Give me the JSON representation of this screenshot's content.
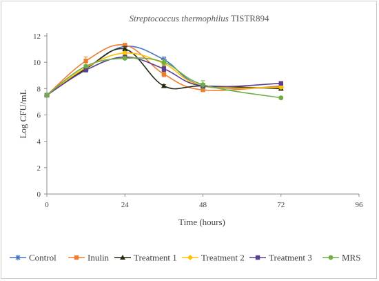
{
  "chart_data": {
    "type": "line",
    "title_italic": "Streptococcus thermophilus",
    "title_rest": " TISTR894",
    "xlabel": "Time (hours)",
    "ylabel": "Log CFU/mL",
    "x_ticks": [
      "0",
      "24",
      "48",
      "72",
      "96"
    ],
    "y_ticks": [
      "0",
      "2",
      "4",
      "6",
      "8",
      "10",
      "12"
    ],
    "xlim": [
      0,
      96
    ],
    "ylim": [
      0,
      12
    ],
    "grid": false,
    "legend_position": "bottom",
    "x": [
      0,
      12,
      24,
      36,
      48,
      72
    ],
    "series": [
      {
        "name": "Control",
        "color": "#4472C4",
        "marker": "star",
        "values": [
          7.5,
          9.5,
          11.2,
          10.2,
          8.2,
          8.1
        ],
        "errors": [
          0.1,
          0.2,
          0.1,
          0.2,
          0.2,
          0.1
        ]
      },
      {
        "name": "Inulin",
        "color": "#ED7D31",
        "marker": "square",
        "values": [
          7.5,
          10.1,
          11.3,
          9.1,
          7.9,
          8.2
        ],
        "errors": [
          0.1,
          0.3,
          0.1,
          0.2,
          0.1,
          0.1
        ]
      },
      {
        "name": "Treatment 1",
        "color": "#1F2A0F",
        "marker": "triangle",
        "values": [
          7.5,
          9.5,
          11.0,
          8.2,
          8.2,
          8.0
        ],
        "errors": [
          0.1,
          0.1,
          0.2,
          0.1,
          0.2,
          0.1
        ]
      },
      {
        "name": "Treatment 2",
        "color": "#FFC000",
        "marker": "diamond",
        "values": [
          7.5,
          9.6,
          10.7,
          9.9,
          8.2,
          8.1
        ],
        "errors": [
          0.1,
          0.1,
          0.1,
          0.2,
          0.2,
          0.1
        ]
      },
      {
        "name": "Treatment 3",
        "color": "#5B3F8C",
        "marker": "square",
        "values": [
          7.5,
          9.4,
          10.4,
          9.5,
          8.2,
          8.4
        ],
        "errors": [
          0.1,
          0.1,
          0.1,
          0.2,
          0.2,
          0.1
        ]
      },
      {
        "name": "MRS",
        "color": "#70AD47",
        "marker": "circle",
        "values": [
          7.5,
          9.7,
          10.3,
          10.0,
          8.3,
          7.3
        ],
        "errors": [
          0.1,
          0.1,
          0.1,
          0.2,
          0.3,
          0.1
        ]
      }
    ]
  }
}
